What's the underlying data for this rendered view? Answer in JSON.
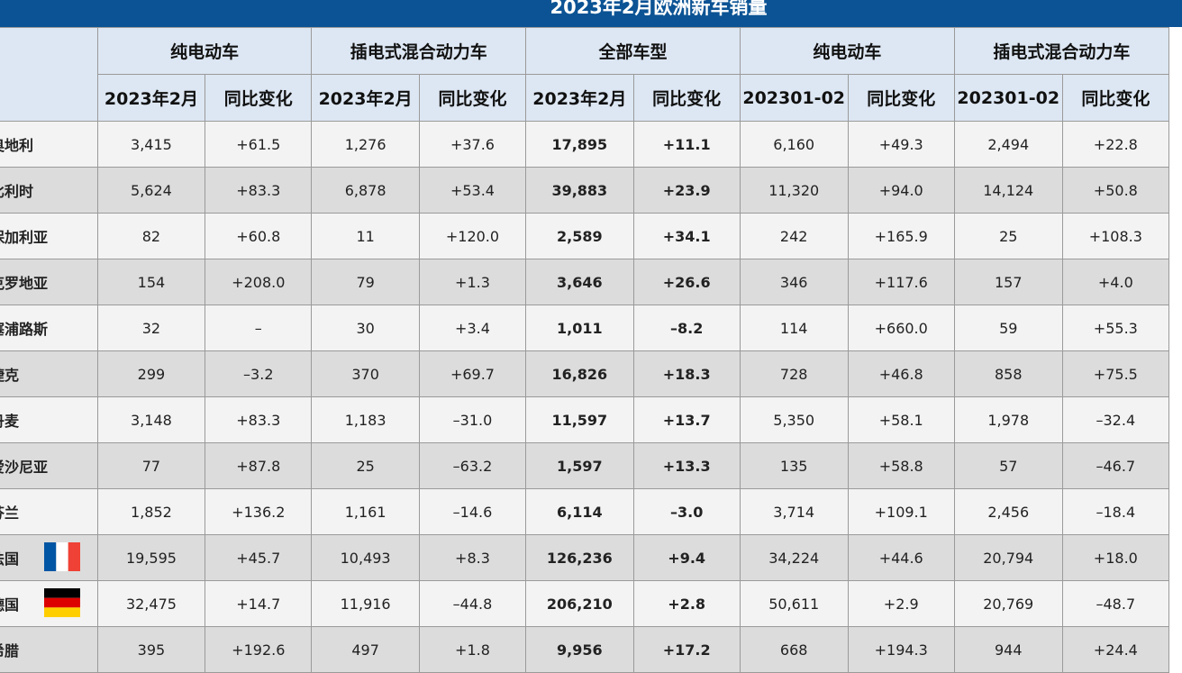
{
  "title": "2023年2月欧洲新车销量",
  "groups": [
    "纯电动车",
    "插电式混合动力车",
    "全部车型",
    "纯电动车",
    "插电式混合动力车"
  ],
  "subheaders": [
    "2023年2月",
    "同比变化",
    "2023年2月",
    "同比变化",
    "2023年2月",
    "同比变化",
    "202301-02",
    "同比变化",
    "202301-02",
    "同比变化"
  ],
  "rows": [
    {
      "country": "奥地利",
      "cells": [
        "3,415",
        "+61.5",
        "1,276",
        "+37.6",
        "17,895",
        "+11.1",
        "6,160",
        "+49.3",
        "2,494",
        "+22.8"
      ]
    },
    {
      "country": "比利时",
      "cells": [
        "5,624",
        "+83.3",
        "6,878",
        "+53.4",
        "39,883",
        "+23.9",
        "11,320",
        "+94.0",
        "14,124",
        "+50.8"
      ]
    },
    {
      "country": "保加利亚",
      "cells": [
        "82",
        "+60.8",
        "11",
        "+120.0",
        "2,589",
        "+34.1",
        "242",
        "+165.9",
        "25",
        "+108.3"
      ]
    },
    {
      "country": "克罗地亚",
      "cells": [
        "154",
        "+208.0",
        "79",
        "+1.3",
        "3,646",
        "+26.6",
        "346",
        "+117.6",
        "157",
        "+4.0"
      ]
    },
    {
      "country": "塞浦路斯",
      "cells": [
        "32",
        "–",
        "30",
        "+3.4",
        "1,011",
        "–8.2",
        "114",
        "+660.0",
        "59",
        "+55.3"
      ]
    },
    {
      "country": "捷克",
      "cells": [
        "299",
        "–3.2",
        "370",
        "+69.7",
        "16,826",
        "+18.3",
        "728",
        "+46.8",
        "858",
        "+75.5"
      ]
    },
    {
      "country": "丹麦",
      "cells": [
        "3,148",
        "+83.3",
        "1,183",
        "–31.0",
        "11,597",
        "+13.7",
        "5,350",
        "+58.1",
        "1,978",
        "–32.4"
      ]
    },
    {
      "country": "爱沙尼亚",
      "cells": [
        "77",
        "+87.8",
        "25",
        "–63.2",
        "1,597",
        "+13.3",
        "135",
        "+58.8",
        "57",
        "–46.7"
      ]
    },
    {
      "country": "芬兰",
      "cells": [
        "1,852",
        "+136.2",
        "1,161",
        "–14.6",
        "6,114",
        "–3.0",
        "3,714",
        "+109.1",
        "2,456",
        "–18.4"
      ]
    },
    {
      "country": "法国",
      "flag": "france-flag-icon",
      "cells": [
        "19,595",
        "+45.7",
        "10,493",
        "+8.3",
        "126,236",
        "+9.4",
        "34,224",
        "+44.6",
        "20,794",
        "+18.0"
      ]
    },
    {
      "country": "德国",
      "flag": "germany-flag-icon",
      "cells": [
        "32,475",
        "+14.7",
        "11,916",
        "–44.8",
        "206,210",
        "+2.8",
        "50,611",
        "+2.9",
        "20,769",
        "–48.7"
      ]
    },
    {
      "country": "希腊",
      "cells": [
        "395",
        "+192.6",
        "497",
        "+1.8",
        "9,956",
        "+17.2",
        "668",
        "+194.3",
        "944",
        "+24.4"
      ]
    }
  ],
  "colors": {
    "header_bg": "#0b5394",
    "positive": "#e0232b",
    "negative": "#1a9a3a"
  }
}
